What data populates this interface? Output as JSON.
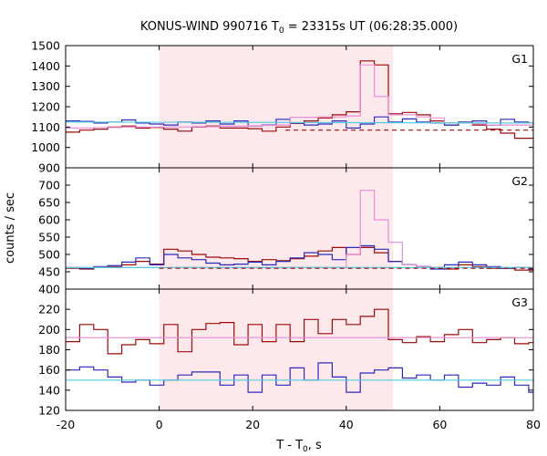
{
  "chart_data": {
    "type": "line",
    "title_prefix": "KONUS-WIND 990716 T",
    "title_sub": "0",
    "title_suffix": " = 23315s UT (06:28:35.000)",
    "xlabel_prefix": "T - T",
    "xlabel_sub": "0",
    "xlabel_suffix": ", s",
    "ylabel": "counts / sec",
    "xlim": [
      -20,
      80
    ],
    "xticks": [
      -20,
      0,
      20,
      40,
      60,
      80
    ],
    "xtick_labels": [
      "-20",
      "0",
      "20",
      "40",
      "60",
      "80"
    ],
    "shaded_interval": [
      0,
      50
    ],
    "colors": {
      "shade": "#fde8ec",
      "dark_red": "#9b0a0a",
      "blue": "#2b2bbb",
      "pink": "#e88ed6",
      "cyan": "#55ccdd"
    },
    "panels": [
      {
        "label": "G1",
        "ylim": [
          900,
          1500
        ],
        "yticks": [
          900,
          1000,
          1100,
          1200,
          1300,
          1400,
          1500
        ],
        "ytick_labels": [
          "900",
          "1000",
          "1100",
          "1200",
          "1300",
          "1400",
          "1500"
        ],
        "series": [
          {
            "role": "dark_red",
            "style": "step",
            "x": [
              -20,
              -17,
              -14,
              -11,
              -8,
              -5,
              -2,
              1,
              4,
              7,
              10,
              13,
              16,
              19,
              22,
              25,
              28,
              31,
              34,
              37,
              40,
              43,
              46,
              49,
              52,
              55,
              58,
              61,
              64,
              67,
              70,
              73,
              76,
              79
            ],
            "y": [
              1075,
              1085,
              1090,
              1100,
              1105,
              1095,
              1098,
              1090,
              1080,
              1100,
              1105,
              1095,
              1095,
              1092,
              1080,
              1100,
              1118,
              1130,
              1145,
              1160,
              1175,
              1425,
              1405,
              1165,
              1172,
              1160,
              1130,
              1110,
              1120,
              1110,
              1090,
              1070,
              1045,
              1045
            ]
          },
          {
            "role": "blue",
            "style": "step",
            "x": [
              -20,
              -17,
              -14,
              -11,
              -8,
              -5,
              -2,
              1,
              4,
              7,
              10,
              13,
              16,
              19,
              22,
              25,
              28,
              31,
              34,
              37,
              40,
              43,
              46,
              49,
              52,
              55,
              58,
              61,
              64,
              67,
              70,
              73,
              76,
              79
            ],
            "y": [
              1130,
              1128,
              1120,
              1125,
              1135,
              1120,
              1115,
              1110,
              1125,
              1120,
              1130,
              1115,
              1130,
              1105,
              1110,
              1138,
              1120,
              1110,
              1115,
              1130,
              1095,
              1115,
              1150,
              1125,
              1140,
              1125,
              1120,
              1110,
              1125,
              1130,
              1110,
              1138,
              1125,
              1120
            ]
          },
          {
            "role": "pink",
            "style": "step",
            "x": [
              -20,
              -17,
              -14,
              -11,
              -8,
              -5,
              -2,
              1,
              4,
              7,
              10,
              13,
              16,
              19,
              22,
              25,
              28,
              31,
              34,
              37,
              40,
              43,
              46,
              49,
              52,
              55,
              58,
              61,
              64,
              67,
              70,
              73,
              76,
              79
            ],
            "y": [
              1095,
              1095,
              1098,
              1098,
              1100,
              1100,
              1100,
              1100,
              1100,
              1102,
              1102,
              1104,
              1104,
              1106,
              1108,
              1110,
              1148,
              1148,
              1150,
              1150,
              1155,
              1405,
              1250,
              1160,
              1160,
              1150,
              1145,
              1120,
              1120,
              1115,
              1110,
              1110,
              1110,
              1110
            ]
          },
          {
            "role": "cyan",
            "style": "line",
            "x": [
              -20,
              80
            ],
            "y": [
              1125,
              1120
            ]
          },
          {
            "role": "dark_red",
            "style": "dashed",
            "x": [
              27,
              80
            ],
            "y": [
              1085,
              1085
            ]
          }
        ]
      },
      {
        "label": "G2",
        "ylim": [
          400,
          750
        ],
        "yticks": [
          400,
          450,
          500,
          550,
          600,
          650,
          700
        ],
        "ytick_labels": [
          "400",
          "450",
          "500",
          "550",
          "600",
          "650",
          "700"
        ],
        "series": [
          {
            "role": "dark_red",
            "style": "step",
            "x": [
              -20,
              -17,
              -14,
              -11,
              -8,
              -5,
              -2,
              1,
              4,
              7,
              10,
              13,
              16,
              19,
              22,
              25,
              28,
              31,
              34,
              37,
              40,
              43,
              46,
              49,
              52,
              55,
              58,
              61,
              64,
              67,
              70,
              73,
              76,
              79
            ],
            "y": [
              460,
              458,
              462,
              465,
              470,
              480,
              472,
              515,
              510,
              500,
              492,
              490,
              488,
              480,
              485,
              482,
              488,
              495,
              510,
              520,
              500,
              520,
              505,
              480,
              470,
              465,
              462,
              458,
              470,
              465,
              460,
              460,
              455,
              455
            ]
          },
          {
            "role": "blue",
            "style": "step",
            "x": [
              -20,
              -17,
              -14,
              -11,
              -8,
              -5,
              -2,
              1,
              4,
              7,
              10,
              13,
              16,
              19,
              22,
              25,
              28,
              31,
              34,
              37,
              40,
              43,
              46,
              49,
              52,
              55,
              58,
              61,
              64,
              67,
              70,
              73,
              76,
              79
            ],
            "y": [
              462,
              460,
              465,
              468,
              478,
              490,
              470,
              500,
              490,
              485,
              475,
              470,
              472,
              478,
              470,
              480,
              490,
              505,
              500,
              485,
              520,
              525,
              515,
              480,
              470,
              465,
              458,
              470,
              478,
              470,
              465,
              460,
              462,
              458
            ]
          },
          {
            "role": "pink",
            "style": "step",
            "x": [
              -20,
              -17,
              -14,
              -11,
              -8,
              -5,
              -2,
              1,
              4,
              7,
              10,
              13,
              16,
              19,
              22,
              25,
              28,
              31,
              34,
              37,
              40,
              43,
              46,
              49,
              52,
              55,
              58,
              61,
              64,
              67,
              70,
              73,
              76,
              79
            ],
            "y": [
              462,
              462,
              462,
              462,
              462,
              462,
              462,
              462,
              462,
              462,
              462,
              462,
              462,
              462,
              462,
              462,
              462,
              462,
              462,
              462,
              500,
              685,
              600,
              535,
              470,
              465,
              462,
              462,
              462,
              462,
              462,
              462,
              462,
              462
            ]
          },
          {
            "role": "cyan",
            "style": "line",
            "x": [
              -20,
              80
            ],
            "y": [
              462,
              462
            ]
          },
          {
            "role": "dark_red",
            "style": "dashed",
            "x": [
              0,
              80
            ],
            "y": [
              460,
              460
            ]
          }
        ]
      },
      {
        "label": "G3",
        "ylim": [
          120,
          240
        ],
        "yticks": [
          120,
          140,
          160,
          180,
          200,
          220
        ],
        "ytick_labels": [
          "120",
          "140",
          "160",
          "180",
          "200",
          "220"
        ],
        "series": [
          {
            "role": "dark_red",
            "style": "step",
            "x": [
              -20,
              -17,
              -14,
              -11,
              -8,
              -5,
              -2,
              1,
              4,
              7,
              10,
              13,
              16,
              19,
              22,
              25,
              28,
              31,
              34,
              37,
              40,
              43,
              46,
              49,
              52,
              55,
              58,
              61,
              64,
              67,
              70,
              73,
              76,
              79
            ],
            "y": [
              188,
              205,
              200,
              176,
              185,
              190,
              186,
              205,
              178,
              200,
              206,
              207,
              185,
              205,
              188,
              205,
              188,
              210,
              196,
              210,
              205,
              213,
              220,
              190,
              187,
              193,
              188,
              195,
              200,
              187,
              190,
              192,
              186,
              187
            ]
          },
          {
            "role": "blue",
            "style": "step",
            "x": [
              -20,
              -17,
              -14,
              -11,
              -8,
              -5,
              -2,
              1,
              4,
              7,
              10,
              13,
              16,
              19,
              22,
              25,
              28,
              31,
              34,
              37,
              40,
              43,
              46,
              49,
              52,
              55,
              58,
              61,
              64,
              67,
              70,
              73,
              76,
              79
            ],
            "y": [
              160,
              163,
              160,
              153,
              148,
              150,
              145,
              150,
              155,
              158,
              158,
              145,
              155,
              138,
              155,
              145,
              162,
              150,
              167,
              153,
              138,
              157,
              160,
              162,
              152,
              155,
              150,
              155,
              143,
              147,
              145,
              153,
              145,
              138
            ]
          },
          {
            "role": "pink",
            "style": "line",
            "x": [
              -20,
              80
            ],
            "y": [
              192,
              192
            ]
          },
          {
            "role": "cyan",
            "style": "line",
            "x": [
              -20,
              80
            ],
            "y": [
              150,
              150
            ]
          }
        ]
      }
    ]
  }
}
